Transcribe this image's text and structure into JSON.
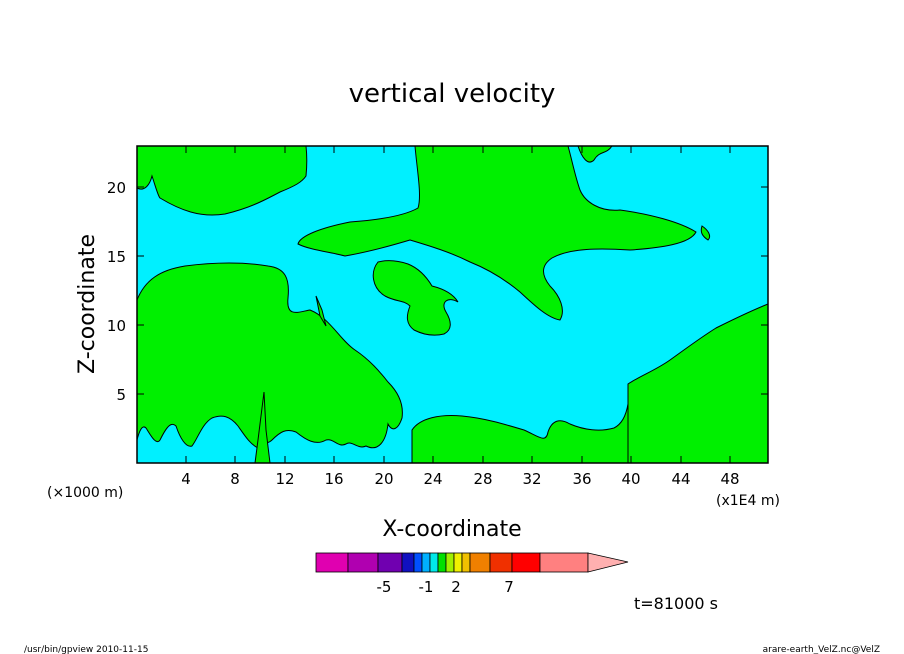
{
  "chart_data": {
    "type": "heatmap",
    "title": "vertical velocity",
    "xlabel": "X-coordinate",
    "ylabel": "Z-coordinate",
    "x_scale_note": "(×1000 m)",
    "x_unit_note": "(x1E4 m)",
    "xlim": [
      0,
      51
    ],
    "ylim": [
      0,
      23
    ],
    "x_ticks": [
      "4",
      "8",
      "12",
      "16",
      "20",
      "24",
      "28",
      "32",
      "36",
      "40",
      "44",
      "48"
    ],
    "y_ticks": [
      "5",
      "10",
      "15",
      "20"
    ],
    "colorbar": {
      "colors": [
        "#e000b0",
        "#b000b0",
        "#7000b0",
        "#1010c0",
        "#0050ff",
        "#00b0ff",
        "#00e8e8",
        "#00e000",
        "#a0f000",
        "#f0f000",
        "#f0c000",
        "#f08000",
        "#f03000",
        "#ff0000",
        "#ff8080",
        "#ffb0b0"
      ],
      "tick_labels": [
        "-5",
        "-1",
        "2",
        "7"
      ],
      "tick_values": [
        -5,
        -1,
        2,
        7
      ]
    },
    "time_label": "t=81000 s"
  },
  "footer": {
    "left": "/usr/bin/gpview  2010-11-15",
    "right": "arare-earth_VelZ.nc@VelZ"
  },
  "colors": {
    "negative_region": "#00f0ff",
    "positive_region": "#00f000"
  }
}
